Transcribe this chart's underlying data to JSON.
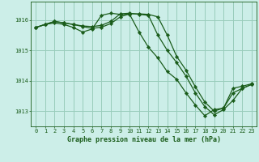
{
  "title": "Graphe pression niveau de la mer (hPa)",
  "bg_color": "#cceee8",
  "grid_color": "#99ccbb",
  "line_color": "#1a5c1a",
  "xlim": [
    -0.5,
    23.5
  ],
  "ylim": [
    1012.5,
    1016.6
  ],
  "yticks": [
    1013,
    1014,
    1015,
    1016
  ],
  "xticks": [
    0,
    1,
    2,
    3,
    4,
    5,
    6,
    7,
    8,
    9,
    10,
    11,
    12,
    13,
    14,
    15,
    16,
    17,
    18,
    19,
    20,
    21,
    22,
    23
  ],
  "series1": {
    "x": [
      0,
      1,
      2,
      3,
      4,
      5,
      6,
      7,
      8,
      9,
      10,
      11,
      12,
      13,
      14,
      15,
      16,
      17,
      18,
      19,
      20,
      21,
      22,
      23
    ],
    "y": [
      1015.75,
      1015.85,
      1015.9,
      1015.85,
      1015.75,
      1015.6,
      1015.7,
      1016.15,
      1016.22,
      1016.18,
      1016.18,
      1015.6,
      1015.1,
      1014.75,
      1014.3,
      1014.05,
      1013.6,
      1013.2,
      1012.85,
      1013.05,
      1013.1,
      1013.75,
      1013.82,
      1013.9
    ]
  },
  "series2": {
    "x": [
      0,
      1,
      2,
      3,
      4,
      5,
      6,
      7,
      8,
      9,
      10,
      11,
      12,
      13,
      14,
      15,
      16,
      17,
      18,
      19,
      20,
      21,
      22,
      23
    ],
    "y": [
      1015.75,
      1015.85,
      1015.95,
      1015.9,
      1015.85,
      1015.8,
      1015.78,
      1015.82,
      1015.95,
      1016.2,
      1016.22,
      1016.18,
      1016.15,
      1015.5,
      1015.0,
      1014.6,
      1014.15,
      1013.6,
      1013.15,
      1012.88,
      1013.05,
      1013.35,
      1013.75,
      1013.88
    ]
  },
  "series3": {
    "x": [
      0,
      1,
      2,
      3,
      4,
      5,
      6,
      7,
      8,
      9,
      10,
      11,
      12,
      13,
      14,
      15,
      16,
      17,
      18,
      19,
      20,
      21,
      22,
      23
    ],
    "y": [
      1015.75,
      1015.85,
      1015.95,
      1015.9,
      1015.85,
      1015.78,
      1015.72,
      1015.76,
      1015.88,
      1016.1,
      1016.2,
      1016.2,
      1016.18,
      1016.1,
      1015.5,
      1014.8,
      1014.35,
      1013.8,
      1013.3,
      1013.0,
      1013.1,
      1013.6,
      1013.75,
      1013.88
    ]
  },
  "marker_size": 2.2,
  "line_width": 0.9,
  "tick_fontsize": 5.0,
  "xlabel_fontsize": 6.0
}
